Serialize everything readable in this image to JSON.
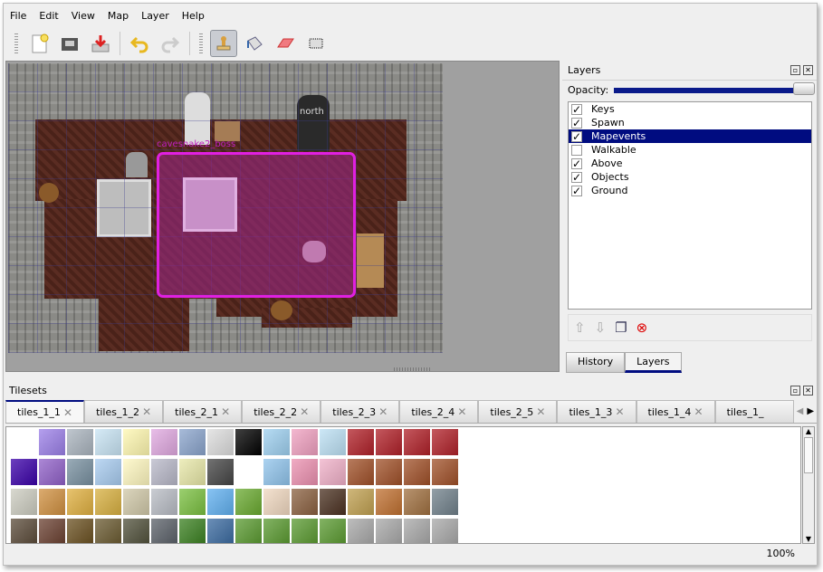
{
  "menu": [
    "File",
    "Edit",
    "View",
    "Map",
    "Layer",
    "Help"
  ],
  "toolbar": {
    "tools": [
      "new-icon",
      "open-icon",
      "save-icon",
      "undo-icon",
      "redo-icon",
      "stamp-brush-icon",
      "bucket-fill-icon",
      "eraser-icon",
      "rect-select-icon"
    ],
    "active": "stamp-brush-icon"
  },
  "map": {
    "object_labels": {
      "selected": "cavesnake2_boss",
      "north": "north"
    },
    "selection_color": "#e020e0"
  },
  "layers_dock": {
    "title": "Layers",
    "opacity_label": "Opacity:",
    "opacity": 1.0,
    "layers": [
      {
        "name": "Keys",
        "visible": true
      },
      {
        "name": "Spawn",
        "visible": true
      },
      {
        "name": "Mapevents",
        "visible": true,
        "selected": true
      },
      {
        "name": "Walkable",
        "visible": false
      },
      {
        "name": "Above",
        "visible": true
      },
      {
        "name": "Objects",
        "visible": true
      },
      {
        "name": "Ground",
        "visible": true
      }
    ],
    "tabs": [
      "History",
      "Layers"
    ],
    "active_tab": "Layers"
  },
  "tilesets": {
    "title": "Tilesets",
    "tabs": [
      "tiles_1_1",
      "tiles_1_2",
      "tiles_2_1",
      "tiles_2_2",
      "tiles_2_3",
      "tiles_2_4",
      "tiles_2_5",
      "tiles_1_3",
      "tiles_1_4",
      "tiles_1_"
    ],
    "active": "tiles_1_1"
  },
  "status": {
    "zoom": "100%"
  },
  "accent": "#000c80"
}
